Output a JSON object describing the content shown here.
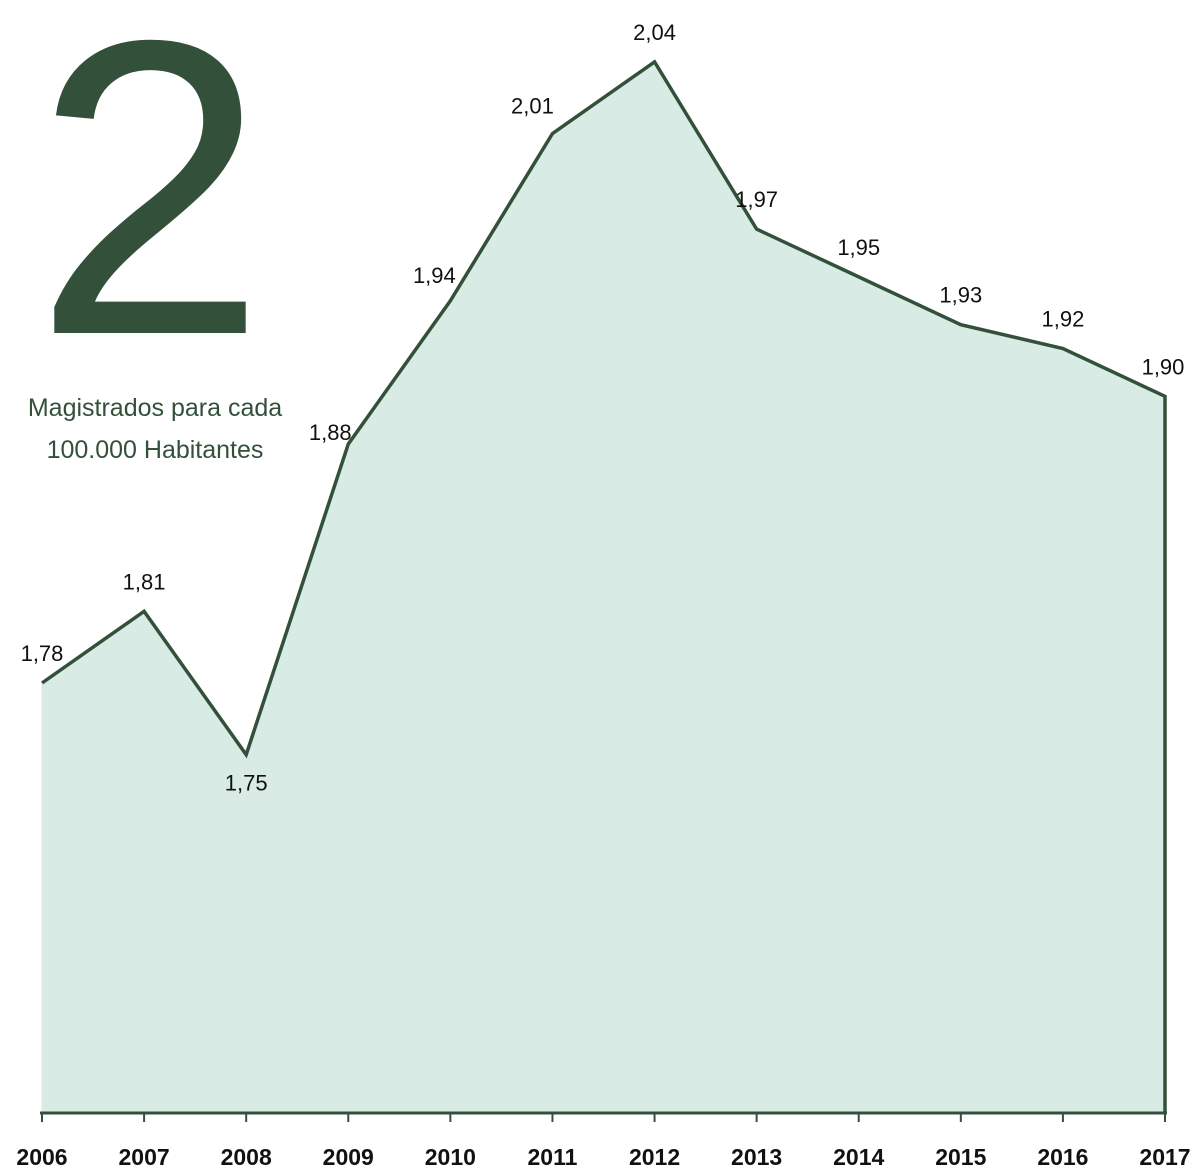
{
  "chart_data": {
    "type": "area",
    "title": "2",
    "subtitle": [
      "Magistrados para cada",
      "100.000 Habitantes"
    ],
    "categories": [
      "2006",
      "2007",
      "2008",
      "2009",
      "2010",
      "2011",
      "2012",
      "2013",
      "2014",
      "2015",
      "2016",
      "2017"
    ],
    "values": [
      1.78,
      1.81,
      1.75,
      1.88,
      1.94,
      2.01,
      2.04,
      1.97,
      1.95,
      1.93,
      1.92,
      1.9
    ],
    "value_labels": [
      "1,78",
      "1,81",
      "1,75",
      "1,88",
      "1,94",
      "2,01",
      "2,04",
      "1,97",
      "1,95",
      "1,93",
      "1,92",
      "1,90"
    ],
    "ylim": [
      1.6,
      2.05
    ],
    "color": "#33503a",
    "fill": "#d8ebe4"
  }
}
